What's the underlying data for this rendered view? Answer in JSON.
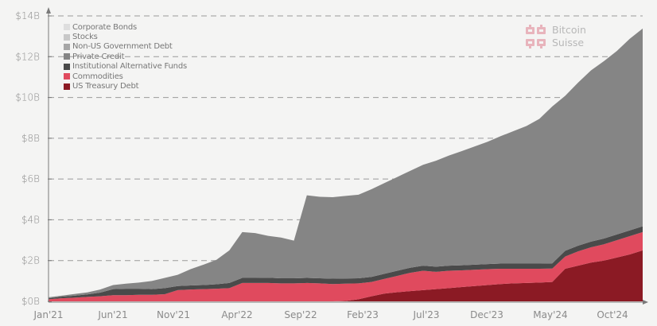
{
  "chart_data": {
    "type": "area",
    "stacked": true,
    "title": "",
    "xlabel": "",
    "ylabel": "",
    "ylim": [
      0,
      14
    ],
    "y_unit": "B USD",
    "y_ticks": [
      "$0B",
      "$2B",
      "$4B",
      "$6B",
      "$8B",
      "$10B",
      "$12B",
      "$14B"
    ],
    "x_ticks": [
      "Jan'21",
      "Jun'21",
      "Nov'21",
      "Apr'22",
      "Sep'22",
      "Feb'23",
      "Jul'23",
      "Dec'23",
      "May'24",
      "Oct'24"
    ],
    "grid": {
      "horizontal": true,
      "style": "dashed"
    },
    "legend_position": "top-left",
    "x": [
      "2021-01",
      "2021-02",
      "2021-03",
      "2021-04",
      "2021-05",
      "2021-06",
      "2021-07",
      "2021-08",
      "2021-09",
      "2021-10",
      "2021-11",
      "2021-12",
      "2022-01",
      "2022-02",
      "2022-03",
      "2022-04",
      "2022-05",
      "2022-06",
      "2022-07",
      "2022-08",
      "2022-09",
      "2022-10",
      "2022-11",
      "2022-12",
      "2023-01",
      "2023-02",
      "2023-03",
      "2023-04",
      "2023-05",
      "2023-06",
      "2023-07",
      "2023-08",
      "2023-09",
      "2023-10",
      "2023-11",
      "2023-12",
      "2024-01",
      "2024-02",
      "2024-03",
      "2024-04",
      "2024-05",
      "2024-06",
      "2024-07",
      "2024-08",
      "2024-09",
      "2024-10",
      "2024-11"
    ],
    "series": [
      {
        "name": "US Treasury Debt",
        "color": "#8b1a24",
        "values": [
          0,
          0,
          0,
          0,
          0,
          0,
          0,
          0,
          0,
          0,
          0,
          0,
          0,
          0,
          0,
          0,
          0,
          0,
          0,
          0,
          0,
          0,
          0,
          0.02,
          0.1,
          0.25,
          0.38,
          0.45,
          0.5,
          0.55,
          0.6,
          0.65,
          0.7,
          0.75,
          0.8,
          0.85,
          0.88,
          0.9,
          0.92,
          0.95,
          1.6,
          1.75,
          1.9,
          2.0,
          2.15,
          2.3,
          2.5
        ]
      },
      {
        "name": "Commodities",
        "color": "#e04a5e",
        "values": [
          0.1,
          0.15,
          0.18,
          0.22,
          0.25,
          0.3,
          0.3,
          0.32,
          0.32,
          0.35,
          0.55,
          0.58,
          0.6,
          0.62,
          0.65,
          0.9,
          0.9,
          0.9,
          0.88,
          0.88,
          0.9,
          0.88,
          0.85,
          0.85,
          0.78,
          0.7,
          0.72,
          0.8,
          0.9,
          0.95,
          0.85,
          0.85,
          0.82,
          0.8,
          0.78,
          0.75,
          0.72,
          0.7,
          0.68,
          0.66,
          0.6,
          0.7,
          0.75,
          0.8,
          0.85,
          0.9,
          0.9
        ]
      },
      {
        "name": "Institutional Alternative Funds",
        "color": "#4a4a4a",
        "values": [
          0.05,
          0.08,
          0.1,
          0.12,
          0.18,
          0.3,
          0.32,
          0.3,
          0.28,
          0.3,
          0.2,
          0.2,
          0.2,
          0.22,
          0.25,
          0.25,
          0.25,
          0.26,
          0.25,
          0.25,
          0.25,
          0.25,
          0.26,
          0.25,
          0.25,
          0.25,
          0.25,
          0.25,
          0.25,
          0.25,
          0.25,
          0.25,
          0.25,
          0.25,
          0.25,
          0.25,
          0.25,
          0.25,
          0.25,
          0.25,
          0.28,
          0.28,
          0.28,
          0.28,
          0.28,
          0.28,
          0.28
        ]
      },
      {
        "name": "Private Credit",
        "color": "#858585",
        "values": [
          0.05,
          0.05,
          0.08,
          0.1,
          0.15,
          0.2,
          0.25,
          0.3,
          0.4,
          0.5,
          0.55,
          0.8,
          1.0,
          1.2,
          1.6,
          2.25,
          2.2,
          2.05,
          2.0,
          1.85,
          4.05,
          4.0,
          4.0,
          4.05,
          4.1,
          4.3,
          4.45,
          4.6,
          4.75,
          4.95,
          5.2,
          5.4,
          5.6,
          5.8,
          6.0,
          6.25,
          6.5,
          6.75,
          7.1,
          7.7,
          7.6,
          8.0,
          8.4,
          8.7,
          9.0,
          9.4,
          9.7
        ]
      },
      {
        "name": "Non-US Government Debt",
        "color": "#a6a6a6",
        "values": []
      },
      {
        "name": "Stocks",
        "color": "#c8c8c8",
        "values": []
      },
      {
        "name": "Corporate Bonds",
        "color": "#dedede",
        "values": []
      }
    ]
  },
  "legend": {
    "items": [
      {
        "label": "Corporate Bonds",
        "color": "#dedede"
      },
      {
        "label": "Stocks",
        "color": "#c8c8c8"
      },
      {
        "label": "Non-US Government Debt",
        "color": "#a6a6a6"
      },
      {
        "label": "Private Credit",
        "color": "#858585"
      },
      {
        "label": "Institutional Alternative Funds",
        "color": "#4a4a4a"
      },
      {
        "label": "Commodities",
        "color": "#e04a5e"
      },
      {
        "label": "US Treasury Debt",
        "color": "#8b1a24"
      }
    ]
  },
  "brand": {
    "line1": "Bitcoin",
    "line2": "Suisse",
    "logo_color": "#e8b4bc"
  }
}
